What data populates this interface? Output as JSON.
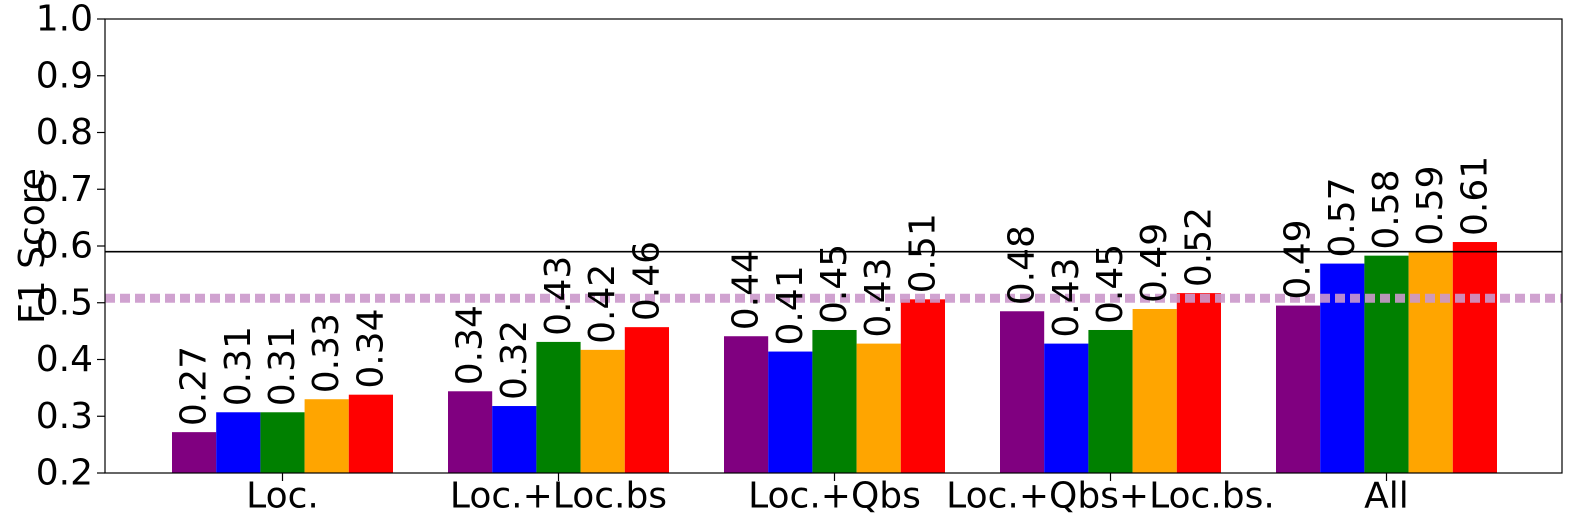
{
  "chart_data": {
    "type": "bar",
    "ylabel": "F1 Score",
    "xlabel": "",
    "ylim": [
      0.2,
      1.0
    ],
    "yticks": [
      "0.2",
      "0.3",
      "0.4",
      "0.5",
      "0.6",
      "0.7",
      "0.8",
      "0.9",
      "1.0"
    ],
    "categories": [
      "Loc.",
      "Loc.+Loc.bs",
      "Loc.+Qbs",
      "Loc.+Qbs+Loc.bs.",
      "All"
    ],
    "series": [
      {
        "color": "#800080",
        "values": [
          0.272,
          0.344,
          0.441,
          0.485,
          0.495
        ],
        "labels": [
          "0.27",
          "0.34",
          "0.44",
          "0.48",
          "0.49"
        ]
      },
      {
        "color": "#0000ff",
        "values": [
          0.307,
          0.318,
          0.414,
          0.428,
          0.569
        ],
        "labels": [
          "0.31",
          "0.32",
          "0.41",
          "0.43",
          "0.57"
        ]
      },
      {
        "color": "#008000",
        "values": [
          0.307,
          0.431,
          0.452,
          0.452,
          0.583
        ],
        "labels": [
          "0.31",
          "0.43",
          "0.45",
          "0.45",
          "0.58"
        ]
      },
      {
        "color": "#ffa500",
        "values": [
          0.33,
          0.417,
          0.428,
          0.489,
          0.59
        ],
        "labels": [
          "0.33",
          "0.42",
          "0.43",
          "0.49",
          "0.59"
        ]
      },
      {
        "color": "#ff0000",
        "values": [
          0.338,
          0.457,
          0.506,
          0.517,
          0.607
        ],
        "labels": [
          "0.34",
          "0.46",
          "0.51",
          "0.52",
          "0.61"
        ]
      }
    ],
    "reference_lines": [
      {
        "value": 0.59,
        "style": "solid",
        "color": "#000000"
      },
      {
        "value": 0.508,
        "style": "dotted",
        "color": "#cc99cc"
      }
    ],
    "grid": false,
    "legend": "none"
  }
}
